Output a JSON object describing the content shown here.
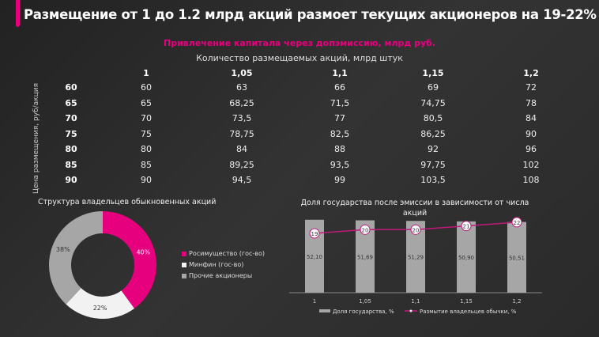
{
  "header": {
    "title": "Размещение от 1 до 1.2 млрд акций размоет текущих акционеров на 19-22%"
  },
  "table": {
    "title": "Привлечение капитала через допэмиссию, млрд руб.",
    "col_title": "Количество размещаемых акций, млрд штук",
    "row_title": "Цена размещения, руб/акция",
    "columns": [
      "1",
      "1,05",
      "1,1",
      "1,15",
      "1,2"
    ],
    "rows": [
      {
        "price": "60",
        "values": [
          "60",
          "63",
          "66",
          "69",
          "72"
        ]
      },
      {
        "price": "65",
        "values": [
          "65",
          "68,25",
          "71,5",
          "74,75",
          "78"
        ]
      },
      {
        "price": "70",
        "values": [
          "70",
          "73,5",
          "77",
          "80,5",
          "84"
        ]
      },
      {
        "price": "75",
        "values": [
          "75",
          "78,75",
          "82,5",
          "86,25",
          "90"
        ]
      },
      {
        "price": "80",
        "values": [
          "80",
          "84",
          "88",
          "92",
          "96"
        ]
      },
      {
        "price": "85",
        "values": [
          "85",
          "89,25",
          "93,5",
          "97,75",
          "102"
        ]
      },
      {
        "price": "90",
        "values": [
          "90",
          "94,5",
          "99",
          "103,5",
          "108"
        ]
      }
    ]
  },
  "chart_data": [
    {
      "type": "pie",
      "donut": true,
      "title": "Структура владельцев обыкновенных акций",
      "slices": [
        {
          "name": "Росимущество  (гос-во)",
          "value": 40,
          "label": "40%",
          "color": "#e6007e"
        },
        {
          "name": "Минфин (гос-во)",
          "value": 22,
          "label": "22%",
          "color": "#f2f2f2"
        },
        {
          "name": "Прочие акционеры",
          "value": 38,
          "label": "38%",
          "color": "#a6a6a6"
        }
      ],
      "legend": "right"
    },
    {
      "type": "bar+line",
      "title": "Доля государства после эмиссии в зависимости от числа акций",
      "categories": [
        "1",
        "1,05",
        "1,1",
        "1,15",
        "1,2"
      ],
      "series": [
        {
          "name": "Доля государства, %",
          "type": "bar",
          "values": [
            52.1,
            51.69,
            51.29,
            50.9,
            50.51
          ],
          "labels": [
            "52,10",
            "51,69",
            "51,29",
            "50,90",
            "50,51"
          ],
          "color": "#a6a6a6"
        },
        {
          "name": "Размытие владельцев обычки, %",
          "type": "line",
          "values": [
            19,
            20,
            20,
            21,
            22
          ],
          "labels": [
            "19",
            "20",
            "20",
            "21",
            "22"
          ],
          "color": "#c0187a"
        }
      ],
      "legend": "bottom"
    }
  ],
  "colors": {
    "accent": "#e6007e"
  }
}
